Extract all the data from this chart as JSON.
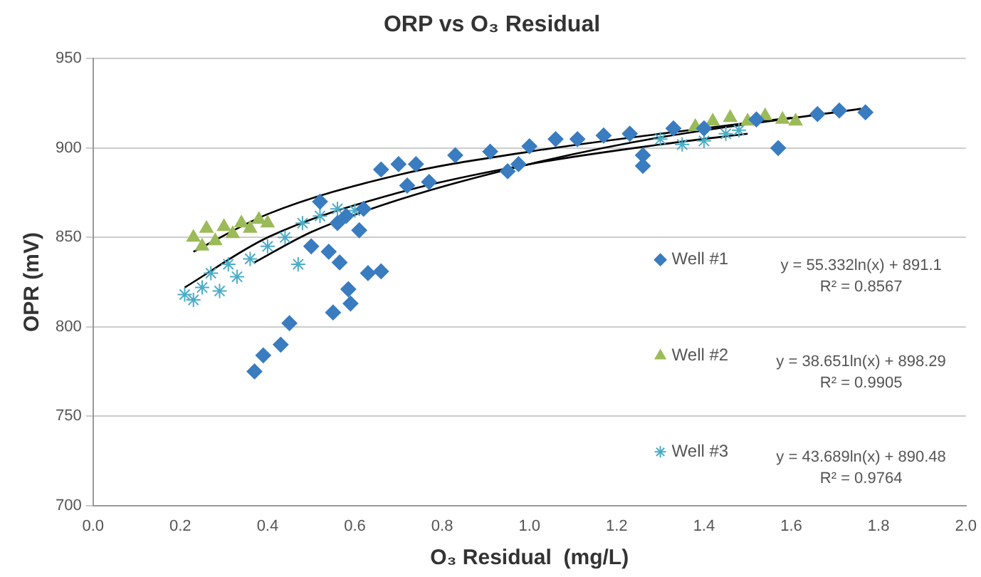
{
  "chart_data": {
    "type": "scatter",
    "title": "ORP vs O₃ Residual",
    "xlabel": "O₃ Residual  (mg/L)",
    "ylabel": "OPR (mV)",
    "xlim": [
      0,
      2
    ],
    "xticks": [
      {
        "value": 0,
        "label": "0.0"
      },
      0.2,
      0.4,
      0.6,
      0.8,
      {
        "value": 1,
        "label": "1.0"
      },
      1.2,
      1.4,
      1.6,
      1.8,
      {
        "value": 2,
        "label": "2.0"
      }
    ],
    "ylim": [
      700,
      950
    ],
    "yticks": [
      700,
      750,
      800,
      850,
      900,
      950
    ],
    "grid": "y",
    "legend": "right",
    "annotations": [
      "y = 55.332ln(x) + 891.1",
      "R² = 0.8567",
      "y = 38.651ln(x) + 898.29",
      "R² = 0.9905",
      "y = 43.689ln(x) + 890.48",
      "R² = 0.9764"
    ],
    "series": [
      {
        "name": "Well #1",
        "color": "#3a7cc0",
        "marker": "diamond",
        "x": [
          0.37,
          0.39,
          0.43,
          0.45,
          0.55,
          0.59,
          0.585,
          0.61,
          0.66,
          0.63,
          0.54,
          0.565,
          0.5,
          0.52,
          0.58,
          0.62,
          0.56,
          0.72,
          0.66,
          0.7,
          0.74,
          0.77,
          0.83,
          0.91,
          0.95,
          0.975,
          1.0,
          1.06,
          1.11,
          1.17,
          1.23,
          1.26,
          1.26,
          1.33,
          1.4,
          1.52,
          1.57,
          1.66,
          1.71,
          1.77
        ],
        "values": [
          775,
          784,
          790,
          802,
          808,
          813,
          821,
          854,
          831,
          830,
          842,
          836,
          845,
          870,
          862,
          866,
          858,
          879,
          888,
          891,
          891,
          881,
          896,
          898,
          887,
          891,
          901,
          905,
          905,
          907,
          908,
          890,
          896,
          911,
          911,
          916,
          900,
          919,
          921,
          920
        ]
      },
      {
        "name": "Well #2",
        "color": "#9bbb59",
        "marker": "triangle",
        "x": [
          0.23,
          0.25,
          0.26,
          0.28,
          0.3,
          0.32,
          0.34,
          0.36,
          0.38,
          0.4,
          1.38,
          1.42,
          1.46,
          1.5,
          1.54,
          1.58,
          1.61
        ],
        "values": [
          850,
          845,
          855,
          848,
          856,
          852,
          858,
          855,
          860,
          858,
          912,
          915,
          917,
          915,
          918,
          916,
          915
        ]
      },
      {
        "name": "Well #3",
        "color": "#4bacc6",
        "marker": "cross",
        "x": [
          0.21,
          0.23,
          0.25,
          0.27,
          0.29,
          0.31,
          0.33,
          0.36,
          0.4,
          0.44,
          0.47,
          0.48,
          0.52,
          0.56,
          0.6,
          1.3,
          1.35,
          1.4,
          1.45,
          1.48
        ],
        "values": [
          818,
          815,
          822,
          830,
          820,
          835,
          828,
          838,
          845,
          850,
          835,
          858,
          862,
          866,
          865,
          905,
          902,
          904,
          908,
          910
        ]
      },
      {
        "type": "line",
        "color": "#000000",
        "marker": "none",
        "x": [
          0.37,
          0.5,
          0.7,
          1.0,
          1.3,
          1.76
        ],
        "values": [
          836,
          853,
          871,
          891,
          906,
          922
        ]
      },
      {
        "type": "line",
        "color": "#000000",
        "marker": "none",
        "x": [
          0.23,
          0.4,
          0.7,
          1.0,
          1.3,
          1.6
        ],
        "values": [
          842,
          863,
          885,
          898,
          908,
          917
        ]
      },
      {
        "type": "line",
        "color": "#000000",
        "marker": "none",
        "x": [
          0.21,
          0.4,
          0.7,
          1.0,
          1.3,
          1.5
        ],
        "values": [
          822,
          850,
          875,
          891,
          902,
          908
        ]
      }
    ]
  }
}
